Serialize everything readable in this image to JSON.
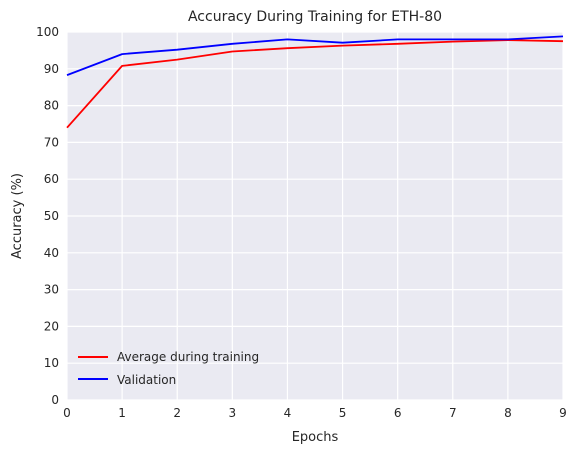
{
  "chart_data": {
    "type": "line",
    "title": "Accuracy During Training for ETH-80",
    "xlabel": "Epochs",
    "ylabel": "Accuracy (%)",
    "x": [
      0,
      1,
      2,
      3,
      4,
      5,
      6,
      7,
      8,
      9
    ],
    "xlim": [
      0,
      9
    ],
    "ylim": [
      0,
      100
    ],
    "xticks": [
      0,
      1,
      2,
      3,
      4,
      5,
      6,
      7,
      8,
      9
    ],
    "yticks": [
      0,
      10,
      20,
      30,
      40,
      50,
      60,
      70,
      80,
      90,
      100
    ],
    "grid": true,
    "background": "#eaeaf2",
    "legend_position": "lower-left",
    "series": [
      {
        "name": "Average during training",
        "color": "#ff0000",
        "values": [
          74.0,
          90.8,
          92.5,
          94.7,
          95.6,
          96.3,
          96.8,
          97.4,
          97.8,
          97.5
        ]
      },
      {
        "name": "Validation",
        "color": "#0000ff",
        "values": [
          88.3,
          94.0,
          95.2,
          96.8,
          98.0,
          97.1,
          98.0,
          98.0,
          98.0,
          98.8
        ]
      }
    ]
  }
}
